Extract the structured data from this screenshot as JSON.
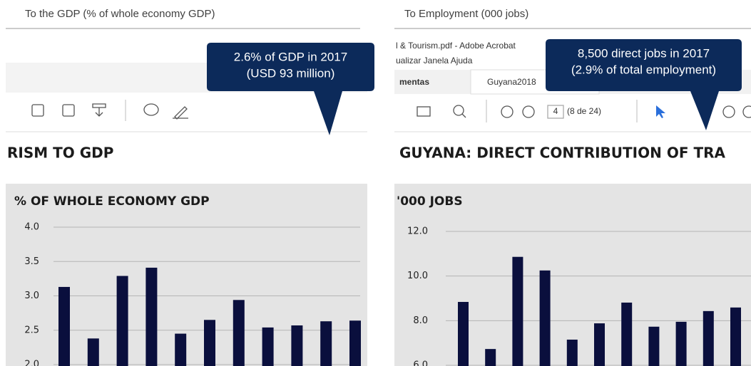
{
  "chart_data": [
    {
      "type": "bar",
      "heading": "To the GDP (% of whole economy GDP)",
      "callout": [
        "2.6% of GDP in 2017",
        "(USD 93 million)"
      ],
      "screen_texts": [],
      "section_title": "RISM TO GDP",
      "title": "% OF WHOLE ECONOMY GDP",
      "values": [
        3.13,
        2.38,
        3.29,
        3.41,
        2.45,
        2.65,
        2.94,
        2.54,
        2.57,
        2.63,
        2.64
      ],
      "color": "#0a0f3d",
      "ylim": [
        2,
        4
      ],
      "yticks": [
        {
          "value": 4,
          "label": "4.0"
        },
        {
          "value": 3.5,
          "label": "3.5"
        },
        {
          "value": 3,
          "label": "3.0"
        },
        {
          "value": 2.5,
          "label": "2.5"
        },
        {
          "value": 2,
          "label": "2.0"
        }
      ],
      "grid": true
    },
    {
      "type": "bar",
      "heading": "To Employment (000 jobs)",
      "callout": [
        "8,500 direct jobs in 2017",
        "(2.9% of total employment)"
      ],
      "screen_texts": [
        "l & Tourism.pdf - Adobe Acrobat",
        "ualizar  Janela  Ajuda",
        "mentas",
        "Guyana2018",
        "4",
        "(8 de 24)"
      ],
      "section_title": "GUYANA: DIRECT CONTRIBUTION OF  TRA",
      "title": "'000 JOBS",
      "values": [
        8.84,
        6.73,
        10.86,
        10.25,
        7.15,
        7.88,
        8.81,
        7.73,
        7.95,
        8.43,
        8.59
      ],
      "color": "#0a0f3d",
      "ylim": [
        6,
        12
      ],
      "yticks": [
        {
          "value": 12,
          "label": "12.0"
        },
        {
          "value": 10,
          "label": "10.0"
        },
        {
          "value": 8,
          "label": "8.0"
        },
        {
          "value": 6,
          "label": "6.0"
        }
      ],
      "grid": true
    }
  ]
}
